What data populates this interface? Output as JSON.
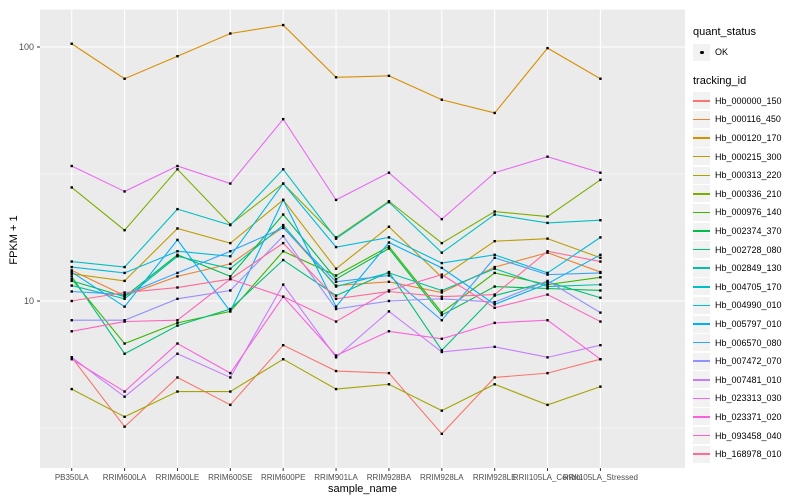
{
  "figure": {
    "y_axis": {
      "title": "FPKM + 1",
      "scale": "log10",
      "ticks": [
        {
          "label": "100",
          "value": 100
        },
        {
          "label": "10",
          "value": 10
        }
      ],
      "minor_gridlines": [
        31.623,
        3.1623
      ]
    },
    "x_axis": {
      "title": "sample_name"
    },
    "legend": {
      "quant_status_title": "quant_status",
      "quant_items": [
        {
          "label": "OK",
          "marker": "point"
        }
      ],
      "tracking_id_title": "tracking_id"
    },
    "colors": {
      "panel_bg": "#EBEBEB",
      "grid": "#FFFFFF",
      "axis_text": "#4D4D4D",
      "tick_mark": "#333333",
      "marker": "#000000",
      "legend_key_bg": "#F2F2F2"
    }
  },
  "chart_data": {
    "type": "line",
    "title": "",
    "xlabel": "sample_name",
    "ylabel": "FPKM + 1",
    "y_scale": "log10",
    "ylim": [
      2.2,
      140
    ],
    "y_major_ticks": [
      10,
      100
    ],
    "grid": true,
    "legend_position": "right",
    "point_marker": "black point (quant_status OK)",
    "categories": [
      "PB350LA",
      "RRIM600LA",
      "RRIM600LE",
      "RRIM600SE",
      "RRIM600PE",
      "RRIM901LA",
      "RRIM928BA",
      "RRIM928LA",
      "RRIM928LE",
      "RRII105LA_Control",
      "RRII105LA_Stressed"
    ],
    "series": [
      {
        "name": "Hb_000000_150",
        "color": "#F8766D",
        "values": [
          6.0,
          3.2,
          5.0,
          3.9,
          6.7,
          5.3,
          5.2,
          3.0,
          5.0,
          5.2,
          5.9
        ]
      },
      {
        "name": "Hb_000116_450",
        "color": "#EA8331",
        "values": [
          13.2,
          10.5,
          12.5,
          14.0,
          19.5,
          11.5,
          11.9,
          10.8,
          13.6,
          15.5,
          13.0
        ]
      },
      {
        "name": "Hb_000120_170",
        "color": "#D89000",
        "values": [
          103,
          75,
          92,
          113,
          122,
          76,
          77,
          62,
          55,
          99,
          75
        ]
      },
      {
        "name": "Hb_000215_300",
        "color": "#C09B00",
        "values": [
          12.8,
          12.0,
          19.3,
          16.9,
          25,
          13.4,
          19.6,
          12.4,
          17.2,
          17.6,
          14.8
        ]
      },
      {
        "name": "Hb_000313_220",
        "color": "#A3A500",
        "values": [
          4.5,
          3.5,
          4.4,
          4.4,
          5.9,
          4.5,
          4.7,
          3.7,
          4.7,
          3.9,
          4.6
        ]
      },
      {
        "name": "Hb_000336_210",
        "color": "#7CAE00",
        "values": [
          28,
          19,
          33,
          20,
          29,
          17.8,
          24.7,
          16.9,
          22.5,
          21.5,
          30
        ]
      },
      {
        "name": "Hb_000976_140",
        "color": "#39B600",
        "values": [
          12.2,
          6.8,
          8.2,
          9.1,
          15.7,
          12.6,
          16.4,
          9.0,
          12.9,
          11.6,
          12.4
        ]
      },
      {
        "name": "Hb_002374_370",
        "color": "#00BB4E",
        "values": [
          12.0,
          10.4,
          15.2,
          12.5,
          21.9,
          12.2,
          16.1,
          8.8,
          11.4,
          11.2,
          11.0
        ]
      },
      {
        "name": "Hb_002728_080",
        "color": "#00BF7D",
        "values": [
          12.5,
          6.2,
          8.0,
          9.3,
          14.5,
          10.5,
          13.0,
          6.4,
          10.5,
          11.9,
          10.3
        ]
      },
      {
        "name": "Hb_002849_130",
        "color": "#00C1A3",
        "values": [
          11.5,
          10.2,
          15.0,
          13.4,
          19.9,
          11.4,
          12.9,
          11.0,
          13.4,
          11.4,
          11.6
        ]
      },
      {
        "name": "Hb_004705_170",
        "color": "#00BFC4",
        "values": [
          14.3,
          13.6,
          23,
          19.9,
          33,
          17.6,
          24.5,
          15.5,
          21.9,
          20.3,
          20.8
        ]
      },
      {
        "name": "Hb_004990_010",
        "color": "#00BAE0",
        "values": [
          13.6,
          12.9,
          15.7,
          15.0,
          29,
          16.3,
          17.8,
          14.1,
          15.2,
          12.9,
          17.8
        ]
      },
      {
        "name": "Hb_005797_010",
        "color": "#00B0F6",
        "values": [
          13.0,
          9.5,
          17.4,
          9.1,
          25,
          9.5,
          17.0,
          13.5,
          9.7,
          11.7,
          15.2
        ]
      },
      {
        "name": "Hb_006570_080",
        "color": "#35A2FF",
        "values": [
          10.9,
          10.6,
          12.9,
          15.7,
          19.4,
          11.9,
          12.6,
          8.4,
          14.8,
          12.7,
          12.9
        ]
      },
      {
        "name": "Hb_007472_070",
        "color": "#9590FF",
        "values": [
          8.4,
          8.4,
          10.2,
          11.0,
          18.0,
          9.3,
          10.0,
          10.2,
          9.9,
          12.0,
          9.0
        ]
      },
      {
        "name": "Hb_007481_010",
        "color": "#C77CFF",
        "values": [
          6.0,
          4.2,
          6.2,
          5.0,
          11.6,
          6.0,
          9.1,
          6.3,
          6.6,
          6.0,
          6.7
        ]
      },
      {
        "name": "Hb_023313_030",
        "color": "#E76BF3",
        "values": [
          34,
          27,
          34,
          29,
          52,
          25,
          32,
          21,
          32,
          37,
          32
        ]
      },
      {
        "name": "Hb_023371_020",
        "color": "#FA62DB",
        "values": [
          5.9,
          4.4,
          6.8,
          5.2,
          10.4,
          6.1,
          7.6,
          7.1,
          8.2,
          8.4,
          5.9
        ]
      },
      {
        "name": "Hb_093458_040",
        "color": "#FF62BC",
        "values": [
          7.6,
          8.3,
          8.4,
          12.2,
          10.4,
          8.3,
          11.0,
          12.7,
          9.4,
          10.6,
          8.3
        ]
      },
      {
        "name": "Hb_168978_010",
        "color": "#FF6A98",
        "values": [
          10.0,
          10.8,
          11.3,
          12.2,
          16.9,
          10.2,
          10.9,
          10.4,
          10.6,
          15.7,
          14.3
        ]
      }
    ]
  }
}
